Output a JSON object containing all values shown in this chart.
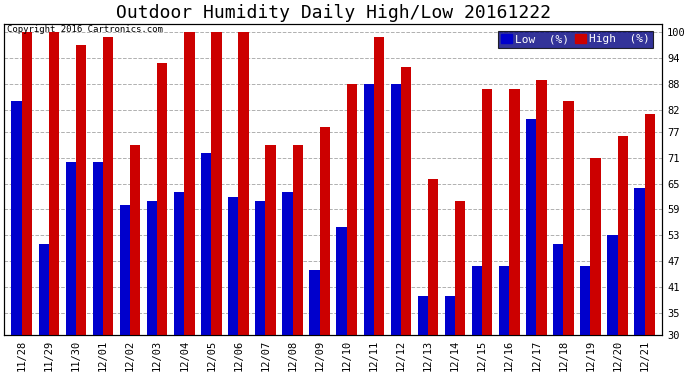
{
  "title": "Outdoor Humidity Daily High/Low 20161222",
  "copyright": "Copyright 2016 Cartronics.com",
  "categories": [
    "11/28",
    "11/29",
    "11/30",
    "12/01",
    "12/02",
    "12/03",
    "12/04",
    "12/05",
    "12/06",
    "12/07",
    "12/08",
    "12/09",
    "12/10",
    "12/11",
    "12/12",
    "12/13",
    "12/14",
    "12/15",
    "12/16",
    "12/17",
    "12/18",
    "12/19",
    "12/20",
    "12/21"
  ],
  "low": [
    84,
    51,
    70,
    70,
    60,
    61,
    63,
    72,
    62,
    61,
    63,
    45,
    55,
    88,
    88,
    39,
    39,
    46,
    46,
    80,
    51,
    46,
    53,
    64
  ],
  "high": [
    100,
    100,
    97,
    99,
    74,
    93,
    100,
    100,
    100,
    74,
    74,
    78,
    88,
    99,
    92,
    66,
    61,
    87,
    87,
    89,
    84,
    71,
    76,
    81
  ],
  "low_color": "#0000cc",
  "high_color": "#cc0000",
  "background_color": "#ffffff",
  "grid_color": "#b0b0b0",
  "yticks": [
    30,
    35,
    41,
    47,
    53,
    59,
    65,
    71,
    77,
    82,
    88,
    94,
    100
  ],
  "ymin": 30,
  "ymax": 102,
  "bar_width": 0.38,
  "title_fontsize": 13,
  "legend_fontsize": 8,
  "tick_fontsize": 7.5,
  "copyright_fontsize": 6.5
}
